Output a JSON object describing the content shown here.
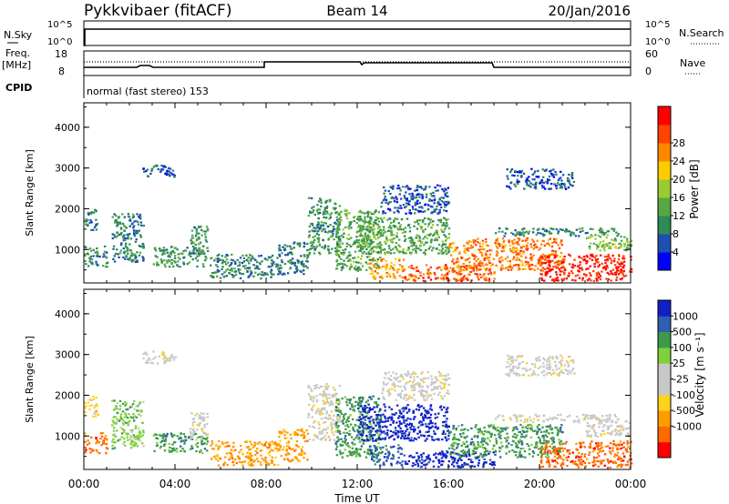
{
  "header": {
    "station": "Pykkvibaer (fitACF)",
    "beam": "Beam 14",
    "date": "20/Jan/2016"
  },
  "top_panels": {
    "nsky_label": "N.Sky",
    "nsky_ticks": [
      "10^5",
      "10^0"
    ],
    "nsearch_label": "N.Search",
    "nsearch_ticks": [
      "10^5",
      "10^0"
    ],
    "freq_label": "Freq.",
    "freq_unit": "[MHz]",
    "freq_ticks": [
      "18",
      "8"
    ],
    "nave_label": "Nave",
    "nave_ticks": [
      "60",
      "0"
    ],
    "cpid_label": "CPID",
    "cpid_text": "normal (fast stereo) 153"
  },
  "colors": {
    "power": [
      "#0000ff",
      "#1f50b0",
      "#2e8a57",
      "#55a845",
      "#99cc33",
      "#ffcc00",
      "#ff8800",
      "#ff4400",
      "#ff0000"
    ],
    "velocity": [
      "#ff0000",
      "#ff6a00",
      "#ff9d00",
      "#ffd21e",
      "#c8c8c8",
      "#c8c8c8",
      "#7ed13b",
      "#3d9a4a",
      "#2e5fb0",
      "#1020c8"
    ]
  },
  "chart_data": [
    {
      "type": "heatmap",
      "panel": "power",
      "ylabel": "Slant Range [km]",
      "ylim": [
        180,
        4600
      ],
      "yticks": [
        "1000",
        "2000",
        "3000",
        "4000"
      ],
      "xlim": [
        "00:00",
        "24:00"
      ],
      "colorbar_label": "Power [dB]",
      "colorbar_ticks": [
        "4",
        "8",
        "12",
        "16",
        "20",
        "24",
        "28"
      ],
      "colorbar_range": [
        0,
        32
      ],
      "regions": [
        {
          "t0": 0.0,
          "t1": 1.0,
          "r0": 600,
          "r1": 1100,
          "v": 9
        },
        {
          "t0": 0.0,
          "t1": 0.6,
          "r0": 1500,
          "r1": 2000,
          "v": 7
        },
        {
          "t0": 1.2,
          "t1": 2.6,
          "r0": 700,
          "r1": 1900,
          "v": 8
        },
        {
          "t0": 2.5,
          "t1": 4.0,
          "r0": 2800,
          "r1": 3100,
          "v": 6
        },
        {
          "t0": 3.0,
          "t1": 5.4,
          "r0": 600,
          "r1": 1100,
          "v": 10
        },
        {
          "t0": 4.6,
          "t1": 5.4,
          "r0": 900,
          "r1": 1600,
          "v": 10
        },
        {
          "t0": 5.5,
          "t1": 8.5,
          "r0": 300,
          "r1": 900,
          "v": 9
        },
        {
          "t0": 8.5,
          "t1": 9.8,
          "r0": 400,
          "r1": 1200,
          "v": 8
        },
        {
          "t0": 9.8,
          "t1": 11.2,
          "r0": 900,
          "r1": 2300,
          "v": 10
        },
        {
          "t0": 11.0,
          "t1": 13.0,
          "r0": 500,
          "r1": 2000,
          "v": 12
        },
        {
          "t0": 12.5,
          "t1": 14.0,
          "r0": 300,
          "r1": 800,
          "v": 22
        },
        {
          "t0": 12.0,
          "t1": 16.0,
          "r0": 900,
          "r1": 1800,
          "v": 12
        },
        {
          "t0": 13.0,
          "t1": 16.0,
          "r0": 1900,
          "r1": 2600,
          "v": 6
        },
        {
          "t0": 14.0,
          "t1": 18.0,
          "r0": 250,
          "r1": 650,
          "v": 26
        },
        {
          "t0": 16.0,
          "t1": 21.0,
          "r0": 500,
          "r1": 1300,
          "v": 24
        },
        {
          "t0": 18.0,
          "t1": 23.5,
          "r0": 1350,
          "r1": 1550,
          "v": 9
        },
        {
          "t0": 18.5,
          "t1": 21.5,
          "r0": 2500,
          "r1": 3000,
          "v": 6
        },
        {
          "t0": 20.0,
          "t1": 24.0,
          "r0": 250,
          "r1": 900,
          "v": 29
        },
        {
          "t0": 22.0,
          "t1": 24.0,
          "r0": 1000,
          "r1": 1400,
          "v": 14
        }
      ]
    },
    {
      "type": "heatmap",
      "panel": "velocity",
      "ylabel": "Slant Range [km]",
      "ylim": [
        180,
        4600
      ],
      "yticks": [
        "1000",
        "2000",
        "3000",
        "4000"
      ],
      "xlim": [
        "00:00",
        "24:00"
      ],
      "xticks": [
        "00:00",
        "04:00",
        "08:00",
        "12:00",
        "16:00",
        "20:00",
        "00:00"
      ],
      "xlabel": "Time UT",
      "colorbar_label": "Velocity [m s⁻¹]",
      "colorbar_ticks": [
        "1000",
        "500",
        "100",
        "25",
        "-25",
        "-100",
        "-500",
        "-1000"
      ],
      "regions": [
        {
          "t0": 0.0,
          "t1": 1.0,
          "r0": 600,
          "r1": 1100,
          "v": 1
        },
        {
          "t0": 0.0,
          "t1": 0.6,
          "r0": 1500,
          "r1": 2000,
          "v": 3
        },
        {
          "t0": 1.2,
          "t1": 2.6,
          "r0": 700,
          "r1": 1900,
          "v": 6
        },
        {
          "t0": 2.5,
          "t1": 4.0,
          "r0": 2800,
          "r1": 3100,
          "v": 4
        },
        {
          "t0": 3.0,
          "t1": 5.4,
          "r0": 600,
          "r1": 1100,
          "v": 7
        },
        {
          "t0": 4.6,
          "t1": 5.4,
          "r0": 900,
          "r1": 1600,
          "v": 4
        },
        {
          "t0": 5.5,
          "t1": 8.5,
          "r0": 300,
          "r1": 900,
          "v": 2
        },
        {
          "t0": 8.5,
          "t1": 9.8,
          "r0": 400,
          "r1": 1200,
          "v": 2
        },
        {
          "t0": 9.8,
          "t1": 11.2,
          "r0": 900,
          "r1": 2300,
          "v": 4
        },
        {
          "t0": 11.0,
          "t1": 13.0,
          "r0": 500,
          "r1": 2000,
          "v": 7
        },
        {
          "t0": 12.5,
          "t1": 14.0,
          "r0": 300,
          "r1": 800,
          "v": 8
        },
        {
          "t0": 12.0,
          "t1": 16.0,
          "r0": 900,
          "r1": 1800,
          "v": 9
        },
        {
          "t0": 13.0,
          "t1": 16.0,
          "r0": 1900,
          "r1": 2600,
          "v": 4
        },
        {
          "t0": 14.0,
          "t1": 18.0,
          "r0": 250,
          "r1": 650,
          "v": 9
        },
        {
          "t0": 16.0,
          "t1": 21.0,
          "r0": 500,
          "r1": 1300,
          "v": 7
        },
        {
          "t0": 18.0,
          "t1": 23.5,
          "r0": 1350,
          "r1": 1550,
          "v": 4
        },
        {
          "t0": 18.5,
          "t1": 21.5,
          "r0": 2500,
          "r1": 3000,
          "v": 4
        },
        {
          "t0": 20.0,
          "t1": 24.0,
          "r0": 250,
          "r1": 900,
          "v": 1
        },
        {
          "t0": 22.0,
          "t1": 24.0,
          "r0": 1000,
          "r1": 1400,
          "v": 4
        }
      ]
    }
  ]
}
